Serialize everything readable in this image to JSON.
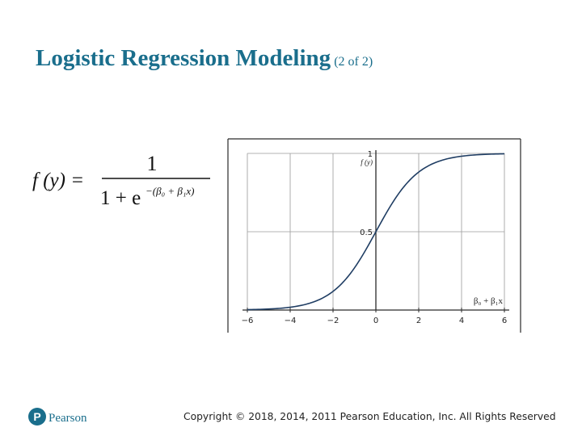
{
  "slide": {
    "title_main": "Logistic Regression Modeling",
    "title_sub": "(2 of 2)",
    "copyright": "Copyright © 2018, 2014, 2011 Pearson Education, Inc. All Rights Reserved",
    "brand": "Pearson",
    "colors": {
      "title": "#1a6e8c",
      "curve": "#1f3d63",
      "brand": "#1a6e8c"
    }
  },
  "formula": {
    "lhs": "f (y) =",
    "numerator": "1",
    "denominator_base": "1 + e",
    "exponent": "−(β₀ + β₁x)"
  },
  "chart_data": {
    "type": "line",
    "function": "1/(1+e^(-t))",
    "x_ticks": [
      "−6",
      "−4",
      "−2",
      "0",
      "2",
      "4",
      "6"
    ],
    "y_ticks": [
      "1",
      "0.5"
    ],
    "y_axis_label": "f (y)",
    "x_axis_label": "β₀ + β₁x",
    "xlim": [
      -6,
      6
    ],
    "ylim": [
      0,
      1
    ],
    "grid": true,
    "series": [
      {
        "x": [
          -6,
          -5,
          -4,
          -3,
          -2,
          -1,
          0,
          1,
          2,
          3,
          4,
          5,
          6
        ],
        "y": [
          0.0025,
          0.0067,
          0.018,
          0.047,
          0.119,
          0.269,
          0.5,
          0.731,
          0.881,
          0.953,
          0.982,
          0.993,
          0.9975
        ]
      }
    ]
  }
}
